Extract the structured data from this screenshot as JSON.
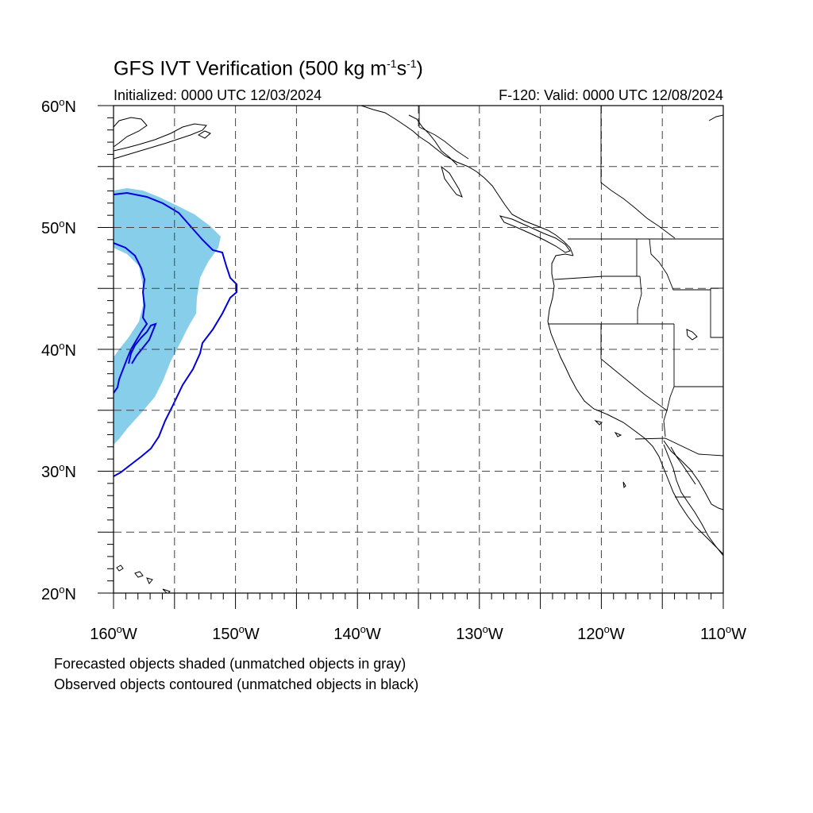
{
  "header": {
    "title_main": "GFS IVT Verification (500 kg m",
    "title_exp1": "-1",
    "title_mid": "s",
    "title_exp2": "-1",
    "title_end": ")",
    "initialized": "Initialized: 0000 UTC 12/03/2024",
    "valid": "F-120: Valid: 0000 UTC 12/08/2024"
  },
  "axes": {
    "lat_labels": [
      "60",
      "50",
      "40",
      "30",
      "20"
    ],
    "lat_suffix": "N",
    "lon_labels": [
      "160",
      "150",
      "140",
      "130",
      "120",
      "110"
    ],
    "lon_suffix": "W",
    "degree": "o"
  },
  "map_extent": {
    "lon_min": -160,
    "lon_max": -110,
    "lat_min": 20,
    "lat_max": 60
  },
  "legend": {
    "line1": "Forecasted objects shaded (unmatched objects in gray)",
    "line2": "Observed objects contoured (unmatched objects in black)"
  },
  "colors": {
    "forecast_fill": "#87ceeb",
    "observed_contour": "#0000dd",
    "coast": "#000000",
    "grid": "#444444"
  }
}
